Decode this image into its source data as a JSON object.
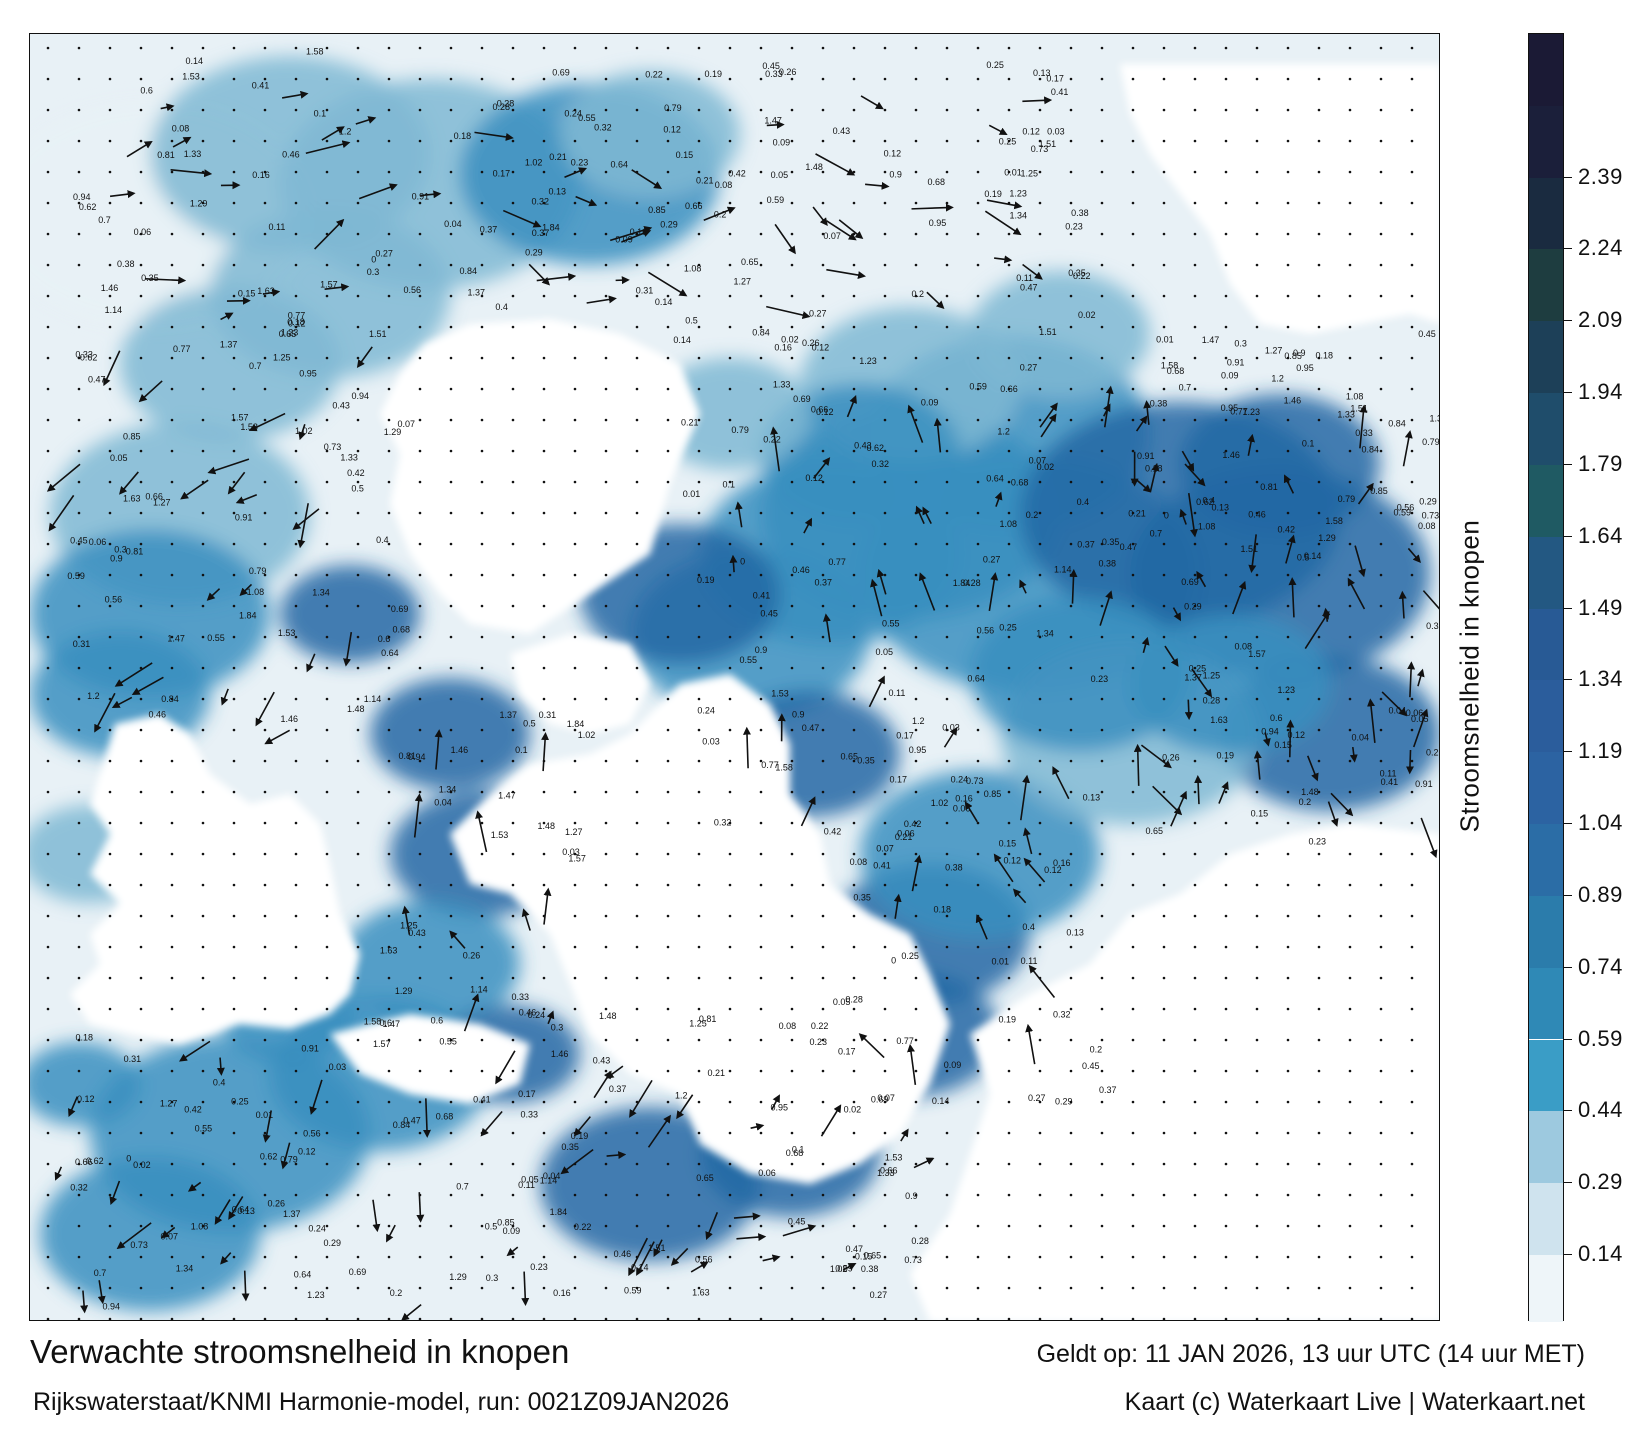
{
  "map": {
    "title": "Verwachte stroomsnelheid in knopen",
    "model_run": "Rijkswaterstaat/KNMI Harmonie-model, run: 0021Z09JAN2026",
    "valid_time": "Geldt op: 11 JAN 2026, 13 uur UTC (14 uur MET)",
    "credit": "Kaart (c) Waterkaart Live | Waterkaart.net",
    "sea_colors": [
      "#e8f1f6",
      "#7fb8d4",
      "#3a8fbf",
      "#2569a5"
    ],
    "land_color": "#ffffff"
  },
  "colorbar": {
    "title": "Stroomsnelheid in knopen",
    "tick_labels": [
      "0.14",
      "0.29",
      "0.44",
      "0.59",
      "0.74",
      "0.89",
      "1.04",
      "1.19",
      "1.34",
      "1.49",
      "1.64",
      "1.79",
      "1.94",
      "2.09",
      "2.24",
      "2.39"
    ],
    "bands": [
      {
        "from": 0.0,
        "to": 0.14,
        "color": "#eef5f9"
      },
      {
        "from": 0.14,
        "to": 0.29,
        "color": "#cfe3ee"
      },
      {
        "from": 0.29,
        "to": 0.44,
        "color": "#9dc9df"
      },
      {
        "from": 0.44,
        "to": 0.59,
        "color": "#3a9dc6"
      },
      {
        "from": 0.59,
        "to": 0.74,
        "color": "#2f89b6"
      },
      {
        "from": 0.74,
        "to": 0.89,
        "color": "#2b7cab"
      },
      {
        "from": 0.89,
        "to": 1.04,
        "color": "#2b6da6"
      },
      {
        "from": 1.04,
        "to": 1.19,
        "color": "#2c63a2"
      },
      {
        "from": 1.19,
        "to": 1.34,
        "color": "#2b5d9c"
      },
      {
        "from": 1.34,
        "to": 1.49,
        "color": "#285a95"
      },
      {
        "from": 1.49,
        "to": 1.64,
        "color": "#235882"
      },
      {
        "from": 1.64,
        "to": 1.79,
        "color": "#1f5a63"
      },
      {
        "from": 1.79,
        "to": 1.94,
        "color": "#1f4d6b"
      },
      {
        "from": 1.94,
        "to": 2.09,
        "color": "#1d4058"
      },
      {
        "from": 2.09,
        "to": 2.24,
        "color": "#1e3d40"
      },
      {
        "from": 2.24,
        "to": 2.39,
        "color": "#1a2b40"
      },
      {
        "from": 2.39,
        "to": 2.54,
        "color": "#1b1f3a"
      },
      {
        "from": 2.54,
        "to": 2.69,
        "color": "#1b1a35"
      }
    ],
    "range": [
      0,
      2.69
    ]
  },
  "speed_labels": [
    {
      "v": "0.32"
    },
    {
      "v": "0.19"
    },
    {
      "v": "0.12"
    },
    {
      "v": "0.41"
    },
    {
      "v": "0.29"
    },
    {
      "v": "0.27"
    },
    {
      "v": "0.25"
    },
    {
      "v": "0.21"
    },
    {
      "v": "0.2"
    },
    {
      "v": "0.22"
    },
    {
      "v": "0.28"
    },
    {
      "v": "0.37"
    },
    {
      "v": "0.38"
    },
    {
      "v": "0.18"
    },
    {
      "v": "0.23"
    },
    {
      "v": "0.35"
    },
    {
      "v": "0.17"
    },
    {
      "v": "0.16"
    },
    {
      "v": "0.15"
    },
    {
      "v": "0.13"
    },
    {
      "v": "0.14"
    },
    {
      "v": "0.12"
    },
    {
      "v": "0.11"
    },
    {
      "v": "0.09"
    },
    {
      "v": "0.08"
    },
    {
      "v": "0.07"
    },
    {
      "v": "0.06"
    },
    {
      "v": "0.05"
    },
    {
      "v": "0.4"
    },
    {
      "v": "0.42"
    },
    {
      "v": "0.45"
    },
    {
      "v": "0.46"
    },
    {
      "v": "0.68"
    },
    {
      "v": "0.7"
    },
    {
      "v": "0.62"
    },
    {
      "v": "0.47"
    },
    {
      "v": "0.55"
    },
    {
      "v": "0.56"
    },
    {
      "v": "0.59"
    },
    {
      "v": "0.64"
    },
    {
      "v": "0.65"
    },
    {
      "v": "0.66"
    },
    {
      "v": "0.69"
    },
    {
      "v": "0.73"
    },
    {
      "v": "0.77"
    },
    {
      "v": "0.79"
    },
    {
      "v": "0.84"
    },
    {
      "v": "0.85"
    },
    {
      "v": "0.91"
    },
    {
      "v": "0.95"
    },
    {
      "v": "0.9"
    },
    {
      "v": "1.08"
    },
    {
      "v": "1.2"
    },
    {
      "v": "1.33"
    },
    {
      "v": "1.23"
    },
    {
      "v": "1.58"
    },
    {
      "v": "1.51"
    },
    {
      "v": "1.46"
    },
    {
      "v": "1.27"
    },
    {
      "v": "1.25"
    },
    {
      "v": "1.29"
    },
    {
      "v": "1.34"
    },
    {
      "v": "1.48"
    },
    {
      "v": "1.63"
    },
    {
      "v": "1.84"
    },
    {
      "v": "1.47"
    },
    {
      "v": "1.53"
    },
    {
      "v": "1.57"
    },
    {
      "v": "1.37"
    },
    {
      "v": "1.14"
    },
    {
      "v": "1.02"
    },
    {
      "v": "0.94"
    },
    {
      "v": "0.81"
    },
    {
      "v": "0.6"
    },
    {
      "v": "0.5"
    },
    {
      "v": "0.43"
    },
    {
      "v": "0.33"
    },
    {
      "v": "0.31"
    },
    {
      "v": "0.3"
    },
    {
      "v": "0.26"
    },
    {
      "v": "0.24"
    },
    {
      "v": "0.1"
    },
    {
      "v": "0.04"
    },
    {
      "v": "0.03"
    },
    {
      "v": "0.02"
    },
    {
      "v": "0.01"
    },
    {
      "v": "0"
    }
  ]
}
